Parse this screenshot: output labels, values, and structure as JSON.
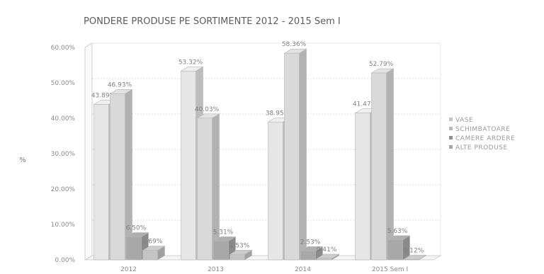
{
  "chart_data": {
    "type": "bar",
    "title": "PONDERE PRODUSE PE SORTIMENTE 2012 - 2015 Sem I",
    "xlabel": "",
    "ylabel": "%",
    "ylim": [
      0,
      60
    ],
    "y_ticks": [
      "0.00%",
      "10.00%",
      "20.00%",
      "30.00%",
      "40.00%",
      "50.00%",
      "60.00%"
    ],
    "categories": [
      "2012",
      "2013",
      "2014",
      "2015 Sem I"
    ],
    "series": [
      {
        "name": "VASE",
        "values": [
          43.89,
          53.32,
          38.95,
          41.47
        ],
        "labels": [
          "43.89%",
          "53.32%",
          "38.95%",
          "41.47%"
        ],
        "color": "#e6e6e6"
      },
      {
        "name": "SCHIMBATOARE",
        "values": [
          46.93,
          40.03,
          58.36,
          52.79
        ],
        "labels": [
          "46.93%",
          "40.03%",
          "58.36%",
          "52.79%"
        ],
        "color": "#d9d9d9"
      },
      {
        "name": "CAMERE ARDERE",
        "values": [
          6.5,
          5.31,
          2.53,
          5.63
        ],
        "labels": [
          "6.50%",
          "5.31%",
          "2.53%",
          "5.63%"
        ],
        "color": "#a8a8a8"
      },
      {
        "name": "ALTE PRODUSE",
        "values": [
          2.69,
          1.53,
          0.41,
          0.12
        ],
        "labels": [
          "2.69%",
          "1.53%",
          "0.41%",
          "0.12%"
        ],
        "color": "#c4c4c4"
      }
    ],
    "grid": true,
    "legend": "right"
  }
}
